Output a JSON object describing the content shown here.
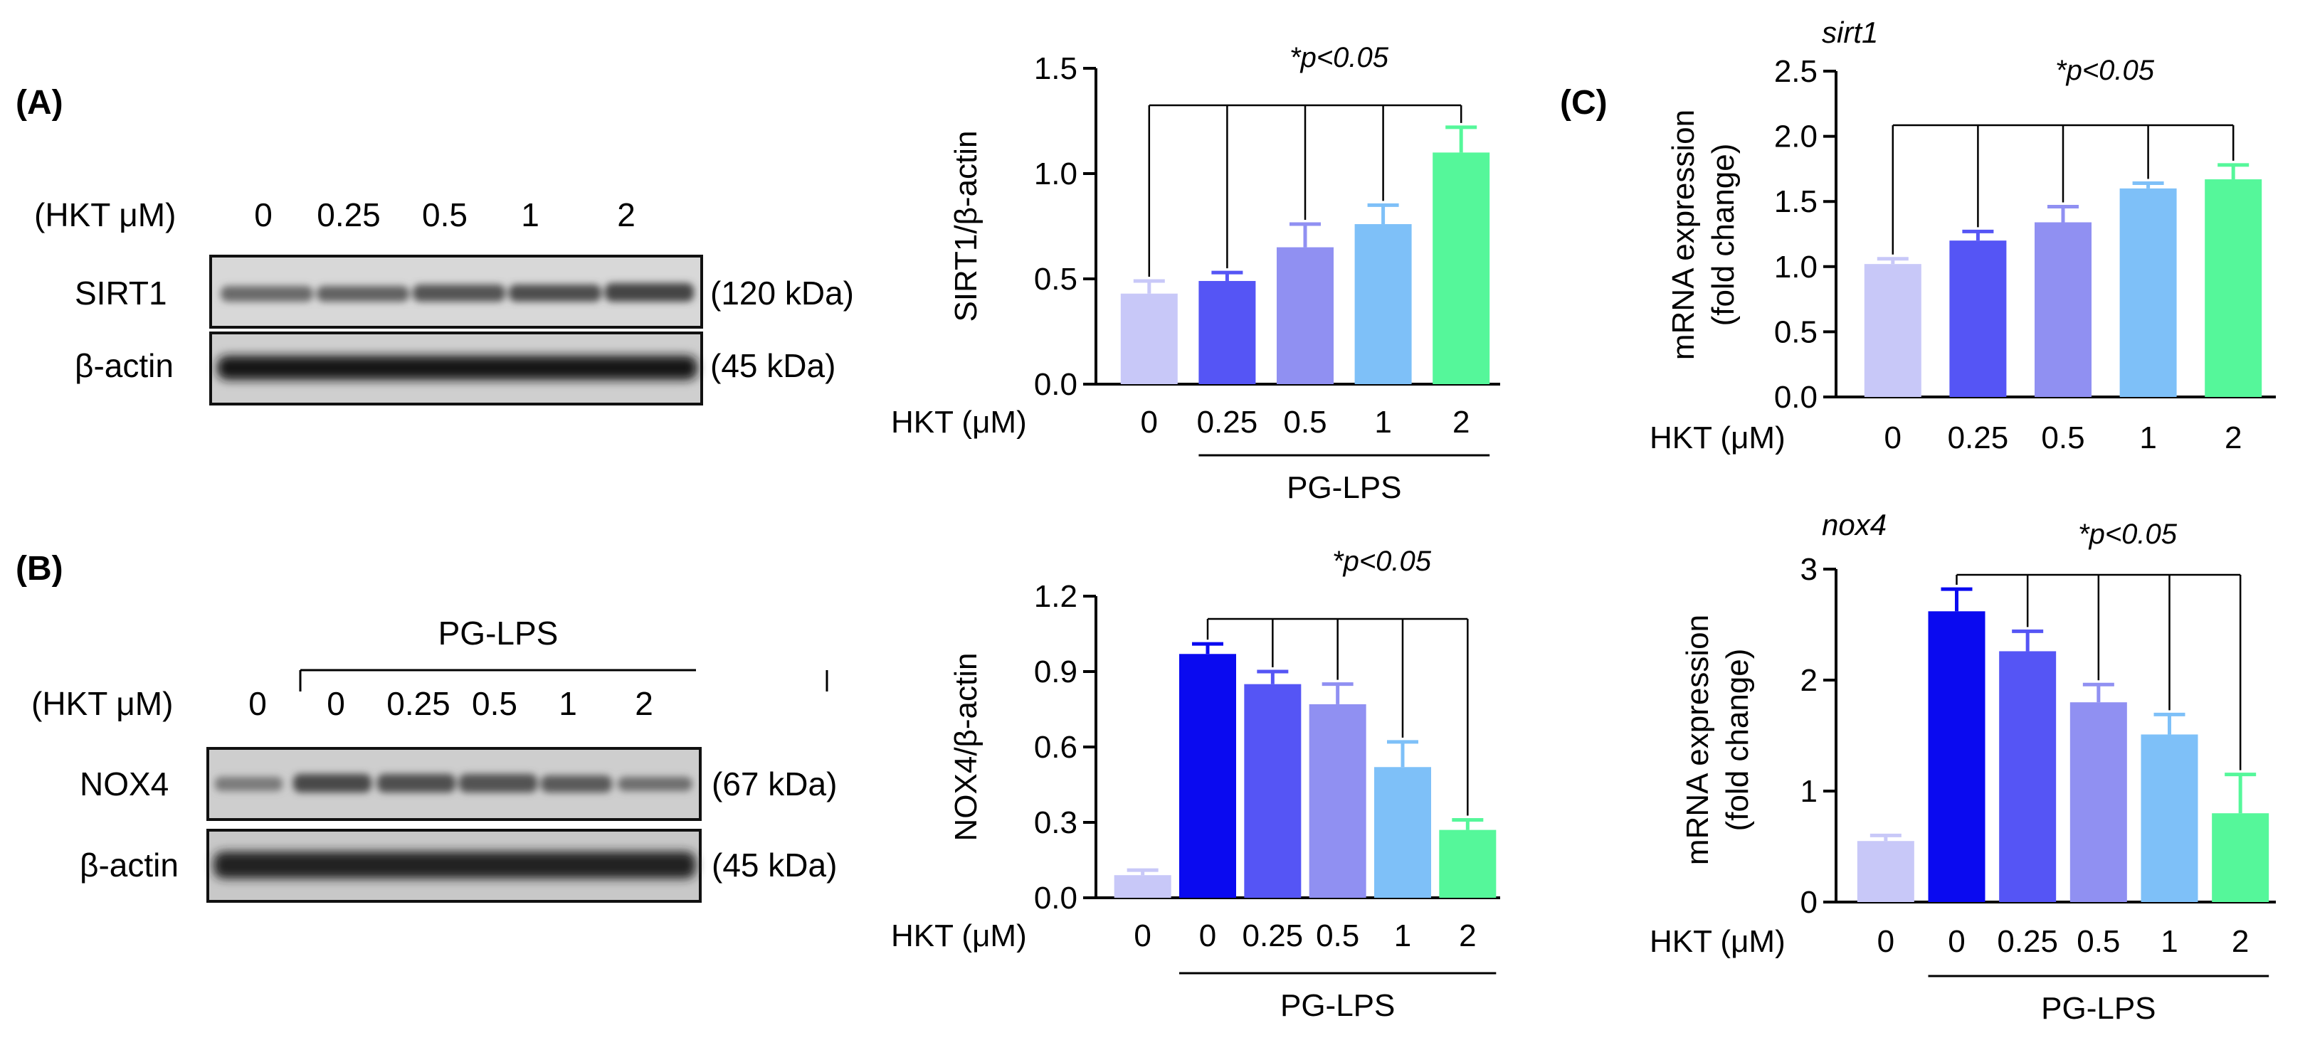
{
  "panel_labels": [
    "(A)",
    "(B)",
    "(C)"
  ],
  "colors": {
    "c0": "#c8c8f8",
    "c0_dark": "#0a0af0",
    "c025": "#5555f5",
    "c05": "#9090f2",
    "c1": "#7ec0f8",
    "c2": "#55f79a"
  },
  "western_a": {
    "header_label": "(HKT μM)",
    "doses": [
      "0",
      "0.25",
      "0.5",
      "1",
      "2"
    ],
    "rows": [
      {
        "protein": "SIRT1",
        "size": "(120 kDa)"
      },
      {
        "protein": "β-actin",
        "size": "(45 kDa)"
      }
    ]
  },
  "western_b": {
    "group_label": "PG-LPS",
    "header_label": "(HKT μM)",
    "doses": [
      "0",
      "0",
      "0.25",
      "0.5",
      "1",
      "2"
    ],
    "rows": [
      {
        "protein": "NOX4",
        "size": "(67 kDa)"
      },
      {
        "protein": "β-actin",
        "size": "(45 kDa)"
      }
    ]
  },
  "chart_data": [
    {
      "id": "sirt1_protein",
      "type": "bar",
      "title": "",
      "ylabel": "SIRT1/β-actin",
      "xlabel": "HKT (μM)",
      "categories": [
        "0",
        "0.25",
        "0.5",
        "1",
        "2"
      ],
      "values": [
        0.43,
        0.49,
        0.65,
        0.76,
        1.1
      ],
      "errors": [
        0.06,
        0.04,
        0.11,
        0.09,
        0.12
      ],
      "ylim": [
        0,
        1.5
      ],
      "yticks": [
        "0.0",
        "0.5",
        "1.0",
        "1.5"
      ],
      "group_label": "PG-LPS",
      "significance": "*p<0.05"
    },
    {
      "id": "nox4_protein",
      "type": "bar",
      "title": "",
      "ylabel": "NOX4/β-actin",
      "xlabel": "HKT (μM)",
      "categories": [
        "0",
        "0",
        "0.25",
        "0.5",
        "1",
        "2"
      ],
      "values": [
        0.09,
        0.97,
        0.85,
        0.77,
        0.52,
        0.27
      ],
      "errors": [
        0.02,
        0.04,
        0.05,
        0.08,
        0.1,
        0.04
      ],
      "ylim": [
        0,
        1.2
      ],
      "yticks": [
        "0.0",
        "0.3",
        "0.6",
        "0.9",
        "1.2"
      ],
      "group_label": "PG-LPS",
      "significance": "*p<0.05"
    },
    {
      "id": "sirt1_mrna",
      "type": "bar",
      "title": "sirt1",
      "ylabel": "mRNA expression",
      "ylabel2": "(fold change)",
      "xlabel": "HKT (μM)",
      "categories": [
        "0",
        "0.25",
        "0.5",
        "1",
        "2"
      ],
      "values": [
        1.02,
        1.2,
        1.34,
        1.6,
        1.67
      ],
      "errors": [
        0.04,
        0.07,
        0.12,
        0.04,
        0.11
      ],
      "ylim": [
        0,
        2.5
      ],
      "yticks": [
        "0.0",
        "0.5",
        "1.0",
        "1.5",
        "2.0",
        "2.5"
      ],
      "significance": "*p<0.05"
    },
    {
      "id": "nox4_mrna",
      "type": "bar",
      "title": "nox4",
      "ylabel": "mRNA expression",
      "ylabel2": "(fold change)",
      "xlabel": "HKT (μM)",
      "categories": [
        "0",
        "0",
        "0.25",
        "0.5",
        "1",
        "2"
      ],
      "values": [
        0.55,
        2.62,
        2.26,
        1.8,
        1.51,
        0.8
      ],
      "errors": [
        0.05,
        0.2,
        0.18,
        0.16,
        0.18,
        0.35
      ],
      "ylim": [
        0,
        3
      ],
      "yticks": [
        "0",
        "1",
        "2",
        "3"
      ],
      "group_label": "PG-LPS",
      "significance": "*p<0.05"
    }
  ]
}
